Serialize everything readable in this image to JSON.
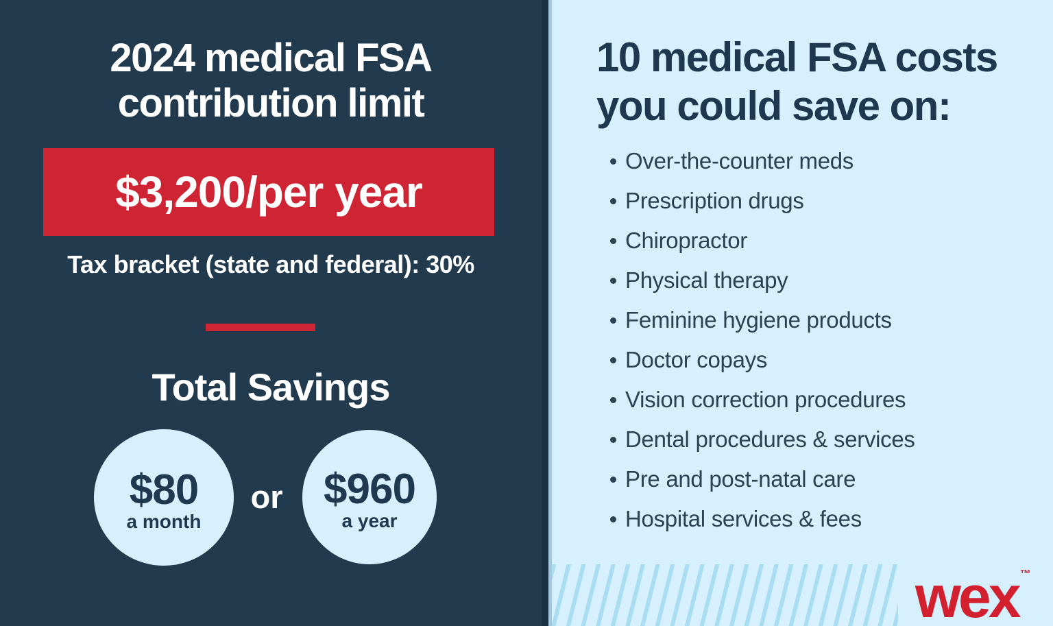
{
  "left_panel": {
    "title_line1": "2024 medical FSA",
    "title_line2": "contribution limit",
    "banner_amount": "$3,200/per year",
    "tax_note": "Tax bracket (state and federal): 30%",
    "savings_heading": "Total Savings",
    "circle_month": {
      "amount": "$80",
      "caption": "a month"
    },
    "or_label": "or",
    "circle_year": {
      "amount": "$960",
      "caption": "a year"
    }
  },
  "right_panel": {
    "heading_line1": "10 medical FSA costs",
    "heading_line2": "you could save on:",
    "items": [
      "Over-the-counter meds",
      "Prescription drugs",
      "Chiropractor",
      "Physical therapy",
      "Feminine hygiene products",
      "Doctor copays",
      "Vision correction procedures",
      "Dental procedures & services",
      "Pre and post-natal care",
      "Hospital services & fees"
    ],
    "logo_text": "wex",
    "logo_tm": "™"
  },
  "colors": {
    "navy_background": "#213A4E",
    "panel_divider_dark": "#1A3141",
    "panel_divider_light": "#A6C8DE",
    "light_blue_background": "#D7F0FD",
    "red_accent": "#CE2433",
    "wex_red": "#D2202F",
    "heading_text": "#1E384F",
    "list_text": "#2B4254",
    "circle_fill": "#D8F0FE",
    "stripe_blue": "#A9DDF2",
    "white_text": "#FFFFFF"
  }
}
